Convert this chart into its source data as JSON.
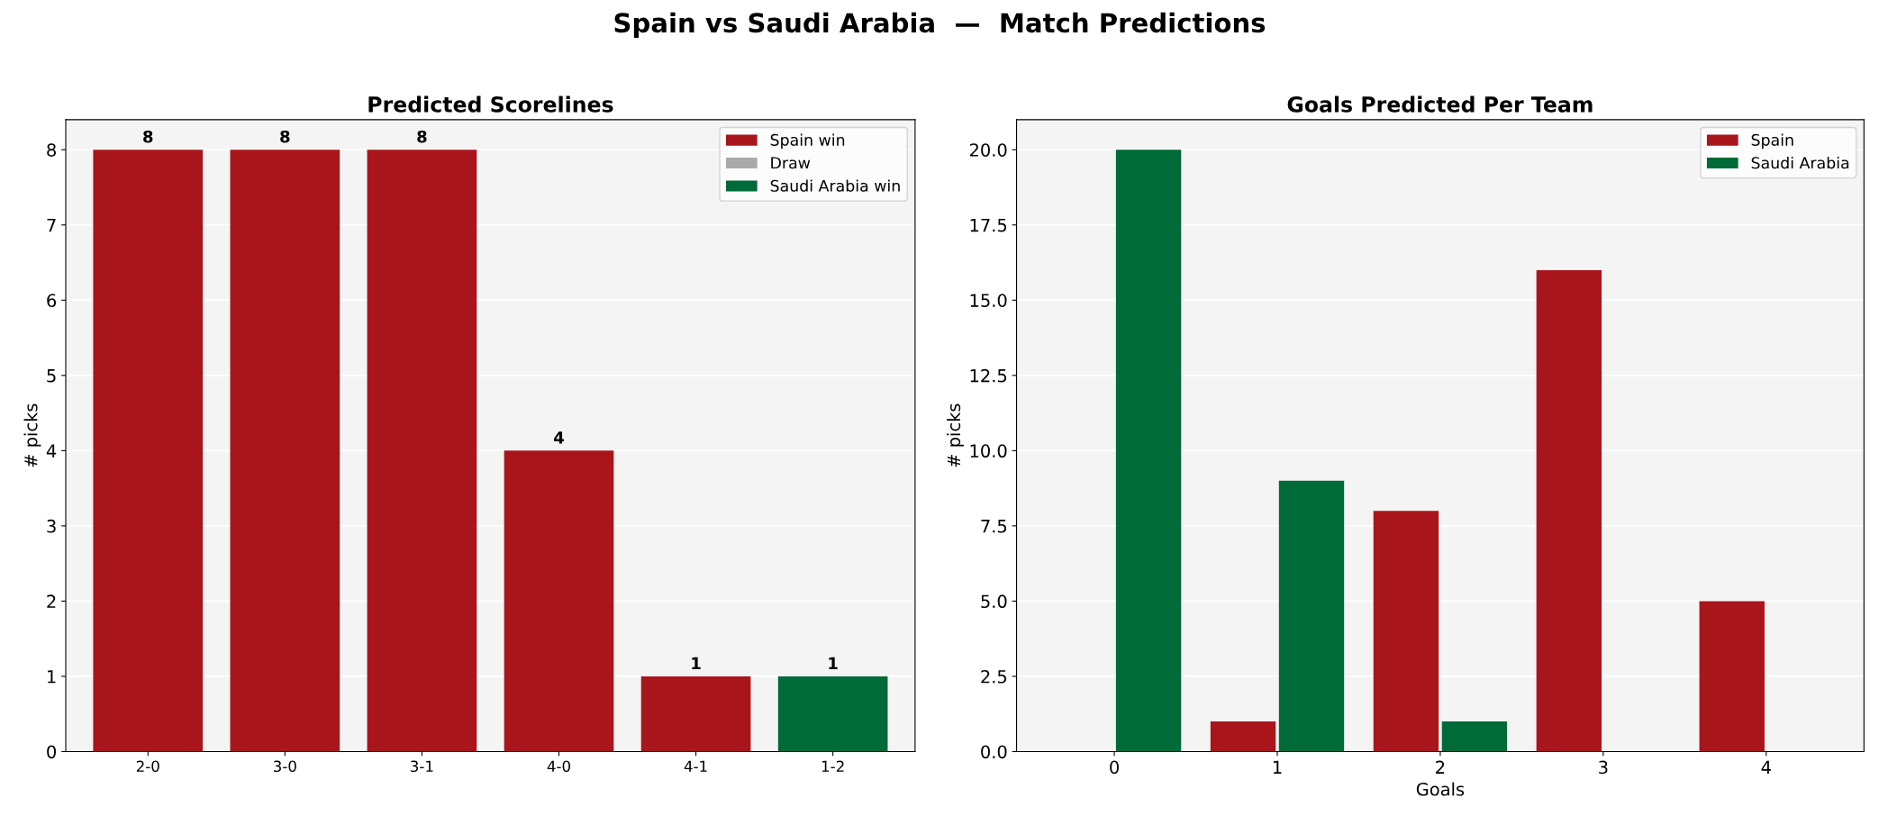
{
  "chart_data": [
    {
      "type": "bar",
      "title": "Predicted Scorelines",
      "annotations": [
        "Spain vs Saudi Arabia  —  Match Predictions"
      ],
      "ylabel": "# picks",
      "categories": [
        "2-0",
        "3-0",
        "3-1",
        "4-0",
        "4-1",
        "1-2"
      ],
      "stacked": true,
      "series": [
        {
          "name": "Spain win",
          "color": "#a8161c",
          "values": [
            8,
            8,
            8,
            4,
            1,
            null
          ]
        },
        {
          "name": "Draw",
          "color": "#aaaaaa",
          "values": [
            null,
            null,
            null,
            null,
            null,
            null
          ]
        },
        {
          "name": "Saudi Arabia win",
          "color": "#006a38",
          "values": [
            null,
            null,
            null,
            null,
            null,
            1
          ]
        }
      ],
      "ylim": [
        0,
        8.4
      ],
      "yticks": [
        0,
        1,
        2,
        3,
        4,
        5,
        6,
        7,
        8
      ],
      "grid": "y",
      "legend": "top right",
      "data_labels": true
    },
    {
      "type": "bar",
      "title": "Goals Predicted Per Team",
      "xlabel": "Goals",
      "ylabel": "# picks",
      "categories": [
        "0",
        "1",
        "2",
        "3",
        "4"
      ],
      "series": [
        {
          "name": "Spain",
          "color": "#a8161c",
          "values": [
            0,
            1,
            8,
            16,
            5
          ]
        },
        {
          "name": "Saudi Arabia",
          "color": "#006a38",
          "values": [
            20,
            9,
            1,
            0,
            0
          ]
        }
      ],
      "ylim": [
        0,
        21
      ],
      "yticks": [
        {
          "value": 0,
          "label": "0.0"
        },
        {
          "value": 2.5,
          "label": "2.5"
        },
        {
          "value": 5,
          "label": "5.0"
        },
        {
          "value": 7.5,
          "label": "7.5"
        },
        {
          "value": 10,
          "label": "10.0"
        },
        {
          "value": 12.5,
          "label": "12.5"
        },
        {
          "value": 15,
          "label": "15.0"
        },
        {
          "value": 17.5,
          "label": "17.5"
        },
        {
          "value": 20,
          "label": "20.0"
        }
      ],
      "grid": "y",
      "legend": "top right"
    }
  ]
}
